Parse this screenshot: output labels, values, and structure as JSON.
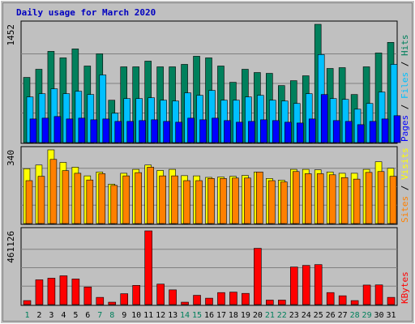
{
  "chart_data": {
    "type": "bar",
    "title": "Daily usage for March 2020",
    "colors": {
      "title": "#0000c0",
      "background": "#c0c0c0",
      "hits": "#00805c",
      "files": "#00c0ff",
      "pages": "#0000ff",
      "visits": "#ffff00",
      "sites": "#ff8000",
      "kbytes": "#ff0000",
      "weekend_day": "#00805c",
      "weekday_day": "#000000"
    },
    "x": {
      "categories": [
        "1",
        "2",
        "3",
        "4",
        "5",
        "6",
        "7",
        "8",
        "9",
        "10",
        "11",
        "12",
        "13",
        "14",
        "15",
        "16",
        "17",
        "18",
        "19",
        "20",
        "21",
        "22",
        "23",
        "24",
        "25",
        "26",
        "27",
        "28",
        "29",
        "30",
        "31"
      ],
      "weekend_days": [
        "1",
        "7",
        "8",
        "14",
        "15",
        "21",
        "22",
        "28",
        "29"
      ]
    },
    "panels": [
      {
        "id": "hits-files-pages",
        "ymax_label": "1452",
        "ymax": 1452,
        "right_label": [
          "Pages",
          "Files",
          "Hits"
        ],
        "series": [
          {
            "name": "Hits",
            "values": [
              800,
              900,
              1120,
              1040,
              1150,
              940,
              1090,
              520,
              930,
              930,
              1000,
              930,
              930,
              960,
              1060,
              1040,
              940,
              740,
              900,
              860,
              850,
              700,
              760,
              820,
              1452,
              910,
              920,
              590,
              930,
              1100,
              1230
            ]
          },
          {
            "name": "Files",
            "values": [
              560,
              600,
              660,
              600,
              630,
              590,
              830,
              360,
              540,
              540,
              550,
              520,
              510,
              610,
              580,
              640,
              520,
              520,
              560,
              580,
              520,
              510,
              480,
              600,
              1080,
              540,
              530,
              410,
              480,
              620,
              960
            ]
          },
          {
            "name": "Pages",
            "values": [
              290,
              300,
              320,
              290,
              300,
              280,
              290,
              260,
              260,
              270,
              280,
              260,
              250,
              300,
              280,
              300,
              270,
              250,
              260,
              280,
              270,
              250,
              240,
              290,
              590,
              270,
              260,
              220,
              260,
              290,
              330
            ]
          }
        ]
      },
      {
        "id": "visits-sites",
        "ymax_label": "340",
        "ymax": 340,
        "right_label": [
          "Sites",
          "Visits"
        ],
        "series": [
          {
            "name": "Visits",
            "values": [
              253,
              270,
              340,
              282,
              260,
              220,
              238,
              182,
              232,
              250,
              270,
              245,
              250,
              221,
              220,
              213,
              215,
              218,
              222,
              238,
              208,
              200,
              250,
              250,
              248,
              238,
              232,
              232,
              250,
              285,
              255
            ]
          },
          {
            "name": "Sites",
            "values": [
              198,
              218,
              296,
              244,
              232,
              201,
              230,
              176,
              220,
              235,
              260,
              220,
              220,
              198,
              198,
              208,
              208,
              210,
              210,
              238,
              198,
              192,
              240,
              230,
              230,
              225,
              212,
              205,
              236,
              240,
              218
            ]
          }
        ]
      },
      {
        "id": "kbytes",
        "ymax_label": "461126",
        "ymax": 461126,
        "right_label": [
          "KBytes"
        ],
        "series": [
          {
            "name": "KBytes",
            "values": [
              25000,
              155000,
              165000,
              180000,
              160000,
              110000,
              45000,
              15000,
              68000,
              120000,
              461126,
              128000,
              92000,
              15000,
              58000,
              40000,
              75000,
              78000,
              70000,
              352000,
              28000,
              28000,
              235000,
              245000,
              250000,
              75000,
              55000,
              25000,
              122000,
              123000,
              45000
            ]
          }
        ]
      }
    ],
    "grid": true,
    "legend": "right side vertical text"
  }
}
